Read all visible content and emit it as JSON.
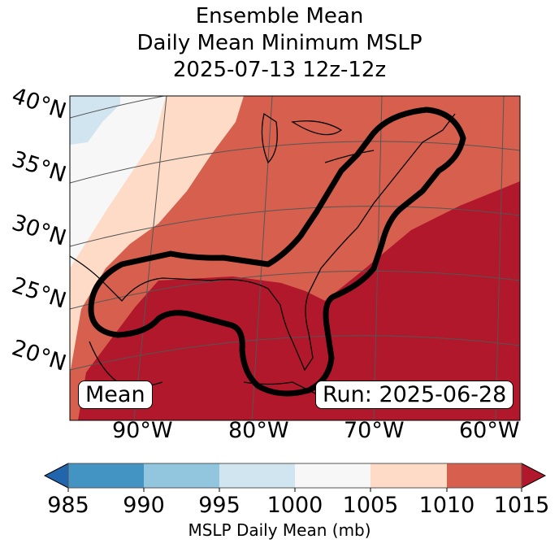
{
  "title": {
    "line1": "Ensemble Mean",
    "line2": "Daily Mean Minimum MSLP",
    "line3": "2025-07-13 12z-12z"
  },
  "map": {
    "lat_labels": [
      "40°N",
      "35°N",
      "30°N",
      "25°N",
      "20°N"
    ],
    "lon_labels": [
      "90°W",
      "80°W",
      "70°W",
      "60°W"
    ],
    "mean_label": "Mean",
    "run_label": "Run: 2025-06-28"
  },
  "colorbar": {
    "label": "MSLP Daily Mean (mb)",
    "ticks": [
      "985",
      "990",
      "995",
      "1000",
      "1005",
      "1010",
      "1015"
    ],
    "colors": [
      "#2166ac",
      "#4393c3",
      "#92c5de",
      "#d1e5f0",
      "#f7f7f7",
      "#fddbc7",
      "#d6604d",
      "#b2182b"
    ]
  }
}
